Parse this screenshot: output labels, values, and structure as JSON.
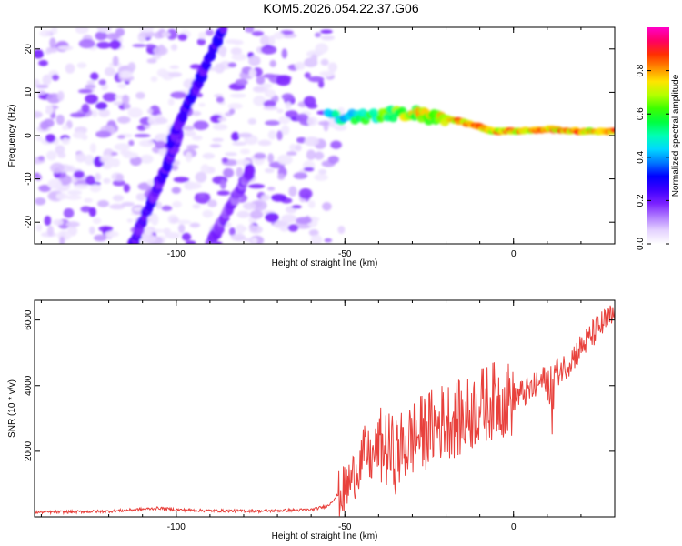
{
  "title": "KOM5.2026.054.22.37.G06",
  "chart_data": [
    {
      "type": "heatmap",
      "title": "KOM5.2026.054.22.37.G06",
      "xlabel": "Height of straight line (km)",
      "ylabel": "Frequency (Hz)",
      "xlim": [
        -142,
        30
      ],
      "ylim": [
        -25,
        25
      ],
      "xticks": [
        "-100",
        "-50",
        "0"
      ],
      "yticks": [
        "20",
        "10",
        "0",
        "-10",
        "-20"
      ],
      "colorbar": {
        "label": "Normalized spectral amplitude",
        "range": [
          0,
          1
        ],
        "ticks": [
          "0.0",
          "0.2",
          "0.4",
          "0.6",
          "0.8"
        ],
        "colors": [
          "#ffffff",
          "#e4d2ff",
          "#b07cff",
          "#7a20ff",
          "#3c00ff",
          "#0000ff",
          "#0078ff",
          "#00d8ff",
          "#00ffb4",
          "#00ff40",
          "#3cff00",
          "#b4ff00",
          "#ffe400",
          "#ff8c00",
          "#ff3000",
          "#ff0064",
          "#ff00c8"
        ]
      },
      "ridges": [
        {
          "name": "left diagonal streak",
          "x": [
            -113,
            -99
          ],
          "y": [
            -25,
            0
          ],
          "peak": 0.28
        },
        {
          "name": "upper diagonal streak",
          "x": [
            -102,
            -86
          ],
          "y": [
            -2,
            25
          ],
          "peak": 0.3
        },
        {
          "name": "lower diagonal streak",
          "x": [
            -90,
            -78
          ],
          "y": [
            -25,
            -8
          ],
          "peak": 0.2
        },
        {
          "name": "main signal trace",
          "x": [
            -55,
            -40,
            -30,
            -20,
            -12,
            -6,
            0,
            10,
            20,
            30
          ],
          "y": [
            4,
            5,
            5,
            4,
            2.5,
            1,
            1,
            1.5,
            1,
            1
          ],
          "peak": 0.85
        }
      ]
    },
    {
      "type": "line",
      "xlabel": "Height of straight line (km)",
      "ylabel": "SNR (10 * v/v)",
      "xlim": [
        -142,
        30
      ],
      "ylim": [
        0,
        6600
      ],
      "xticks": [
        "-100",
        "-50",
        "0"
      ],
      "yticks": [
        "2000",
        "4000",
        "6000"
      ],
      "color": "#e8413c",
      "series": [
        {
          "name": "SNR",
          "x": [
            -142,
            -120,
            -105,
            -100,
            -90,
            -75,
            -60,
            -55,
            -50,
            -47,
            -44,
            -42,
            -40,
            -35,
            -30,
            -25,
            -20,
            -15,
            -10,
            -5,
            0,
            5,
            10,
            15,
            20,
            25,
            30
          ],
          "values": [
            120,
            150,
            250,
            200,
            170,
            160,
            200,
            320,
            900,
            1400,
            2100,
            1800,
            2300,
            2000,
            2500,
            2800,
            3100,
            3100,
            3500,
            3700,
            3700,
            3900,
            4300,
            4600,
            5200,
            5800,
            6200
          ]
        }
      ]
    }
  ]
}
